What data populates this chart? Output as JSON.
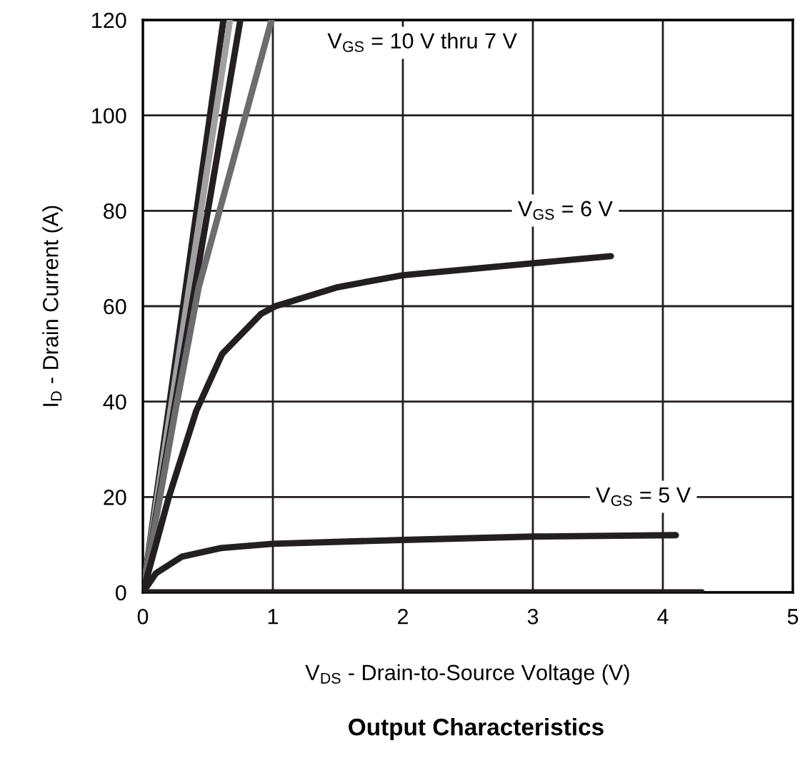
{
  "chart_data": {
    "type": "line",
    "title": "Output Characteristics",
    "xlabel": "V$_{DS}$ - Drain-to-Source Voltage (V)",
    "ylabel": "I$_{D}$ - Drain Current (A)",
    "xlim": [
      0,
      5
    ],
    "ylim": [
      0,
      120
    ],
    "xticks": [
      0,
      1,
      2,
      3,
      4,
      5
    ],
    "yticks": [
      0,
      20,
      40,
      60,
      80,
      100,
      120
    ],
    "grid": true,
    "legend": false,
    "marker": "none",
    "line_style": "solid",
    "series": [
      {
        "color": "#231f20",
        "x": [
          0,
          0.62
        ],
        "values": [
          0,
          120
        ]
      },
      {
        "color": "#a0a0a2",
        "x": [
          0,
          0.67
        ],
        "values": [
          0,
          120
        ]
      },
      {
        "color": "#231f20",
        "x": [
          0,
          0.75
        ],
        "values": [
          0,
          120
        ]
      },
      {
        "color": "#6d6d6f",
        "x": [
          0,
          0.25,
          0.43,
          0.73,
          0.99
        ],
        "values": [
          0,
          38,
          64,
          94,
          120
        ]
      },
      {
        "color": "#231f20",
        "x": [
          0,
          0.2,
          0.41,
          0.61,
          0.91,
          1.02,
          1.5,
          2,
          3,
          3.6
        ],
        "values": [
          0,
          20,
          38,
          50,
          58.4,
          60,
          64,
          66.5,
          69,
          70.5
        ]
      },
      {
        "color": "#231f20",
        "x": [
          0,
          0.1,
          0.3,
          0.6,
          1,
          2,
          3,
          4.1
        ],
        "values": [
          0,
          4,
          7.5,
          9.3,
          10.2,
          11,
          11.7,
          12
        ]
      },
      {
        "color": "#231f20",
        "x": [
          0,
          4.3
        ],
        "values": [
          0,
          0
        ]
      }
    ],
    "annotations": [
      "V$_{GS}$ = 10 V thru 7 V",
      "V$_{GS}$ = 6 V",
      "V$_{GS}$ = 5 V"
    ]
  }
}
